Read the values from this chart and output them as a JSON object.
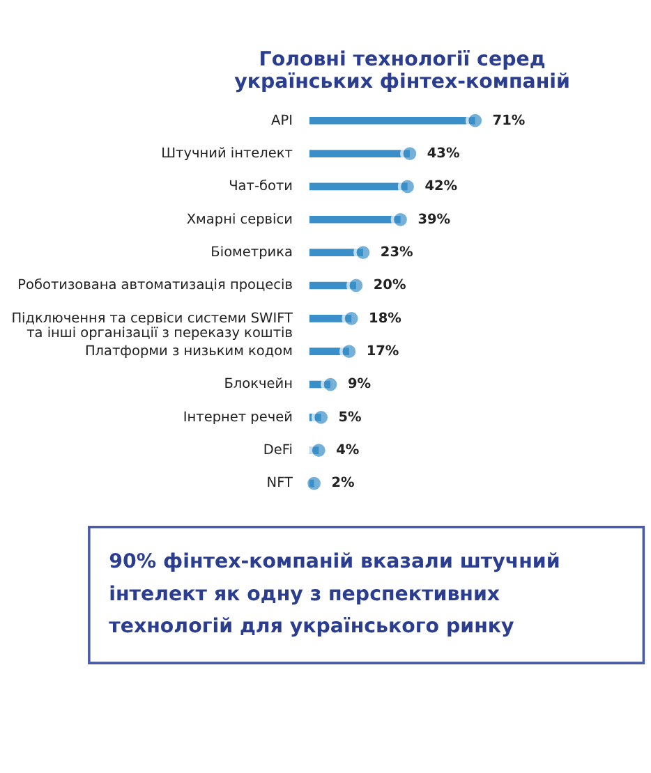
{
  "chart_data": {
    "type": "lollipop",
    "orientation": "horizontal",
    "title": "Головні технології серед українських фінтех-компаній",
    "categories": [
      "API",
      "Штучний інтелект",
      "Чат-боти",
      "Хмарні сервіси",
      "Біометрика",
      "Роботизована автоматизація процесів",
      "Підключення та сервіси системи SWIFT та інші організації з переказу коштів",
      "Платформи з низьким кодом",
      "Блокчейн",
      "Інтернет речей",
      "DeFi",
      "NFT"
    ],
    "values": [
      71,
      43,
      42,
      39,
      23,
      20,
      18,
      17,
      9,
      5,
      4,
      2
    ],
    "value_labels": [
      "71%",
      "43%",
      "42%",
      "39%",
      "23%",
      "20%",
      "18%",
      "17%",
      "9%",
      "5%",
      "4%",
      "2%"
    ],
    "color": "#3a8fc8",
    "annotations": [
      "90% фінтех-компаній вказали штучний інтелект як одну з перспективних технологій для українського ринку"
    ]
  }
}
